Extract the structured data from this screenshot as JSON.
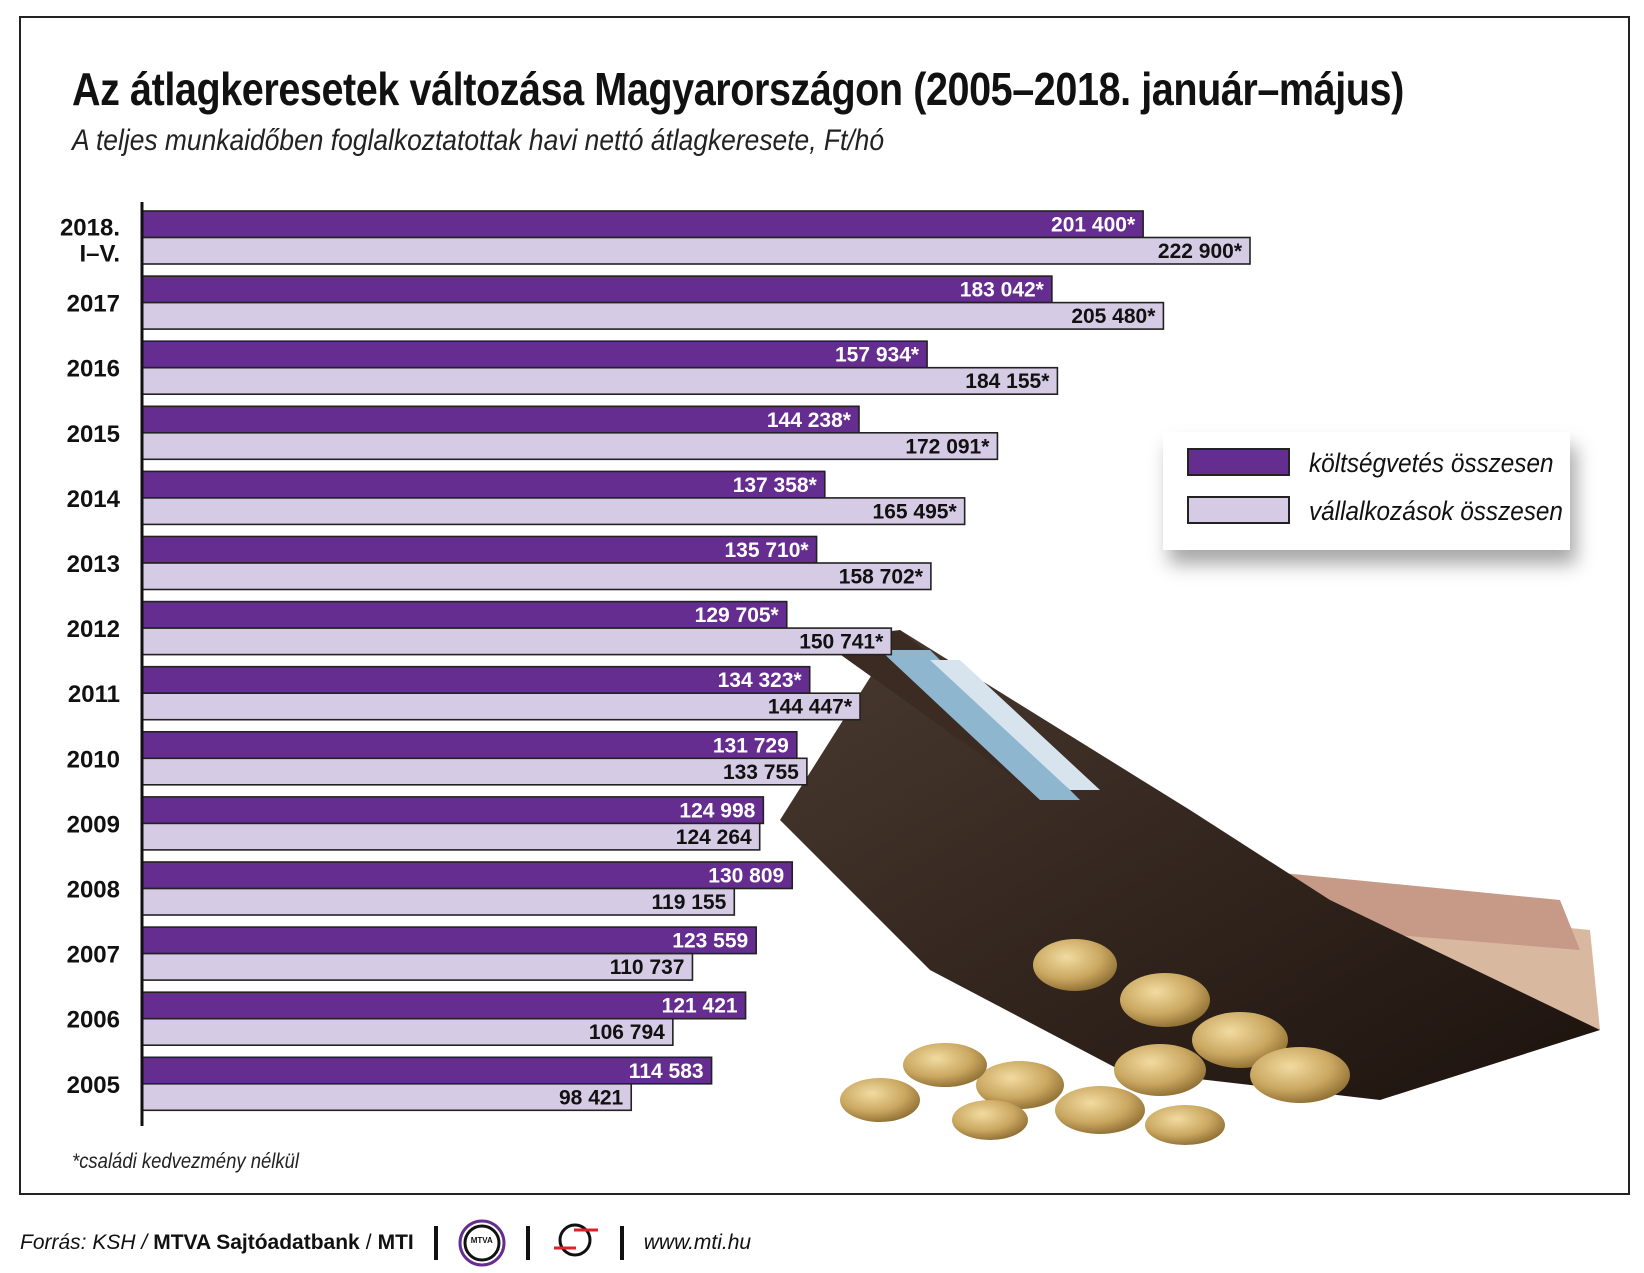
{
  "title": "Az átlagkeresetek változása Magyarországon (2005–2018. január–május)",
  "subtitle": "A teljes munkaidőben foglalkoztatottak havi nettó átlagkeresete, Ft/hó",
  "footnote": "*családi kedvezmény nélkül",
  "footer": {
    "source_prefix": "Forrás: KSH /",
    "source_bold": "MTVA Sajtóadatbank",
    "source_sep": "/",
    "source_mti": "MTI",
    "mtva_logo_text": "MTVA",
    "url": "www.mti.hu"
  },
  "colors": {
    "budget": "#662d91",
    "business": "#d6cbe4"
  },
  "chart_data": {
    "type": "bar",
    "orientation": "horizontal",
    "title": "Az átlagkeresetek változása Magyarországon (2005–2018. január–május)",
    "subtitle": "A teljes munkaidőben foglalkoztatottak havi nettó átlagkeresete, Ft/hó",
    "categories": [
      [
        "2018.",
        "I–V."
      ],
      [
        "2017"
      ],
      [
        "2016"
      ],
      [
        "2015"
      ],
      [
        "2014"
      ],
      [
        "2013"
      ],
      [
        "2012"
      ],
      [
        "2011"
      ],
      [
        "2010"
      ],
      [
        "2009"
      ],
      [
        "2008"
      ],
      [
        "2007"
      ],
      [
        "2006"
      ],
      [
        "2005"
      ]
    ],
    "xlim": [
      0,
      222900
    ],
    "grid": false,
    "legend_position": "right",
    "series": [
      {
        "name": "költségvetés összesen",
        "color": "#662d91",
        "values": [
          201400,
          183042,
          157934,
          144238,
          137358,
          135710,
          129705,
          134323,
          131729,
          124998,
          130809,
          123559,
          121421,
          114583
        ],
        "labels": [
          "201 400*",
          "183 042*",
          "157 934*",
          "144 238*",
          "137 358*",
          "135 710*",
          "129 705*",
          "134 323*",
          "131 729",
          "124 998",
          "130 809",
          "123 559",
          "121 421",
          "114 583"
        ]
      },
      {
        "name": "vállalkozások összesen",
        "color": "#d6cbe4",
        "values": [
          222900,
          205480,
          184155,
          172091,
          165495,
          158702,
          150741,
          144447,
          133755,
          124264,
          119155,
          110737,
          106794,
          98421
        ],
        "labels": [
          "222 900*",
          "205 480*",
          "184 155*",
          "172 091*",
          "165 495*",
          "158 702*",
          "150 741*",
          "144 447*",
          "133 755",
          "124 264",
          "119 155",
          "110 737",
          "106 794",
          "98 421"
        ]
      }
    ]
  }
}
